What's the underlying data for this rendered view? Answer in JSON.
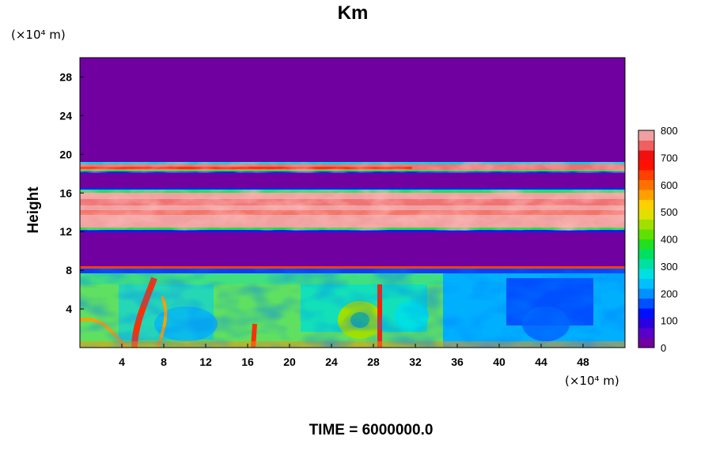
{
  "chart_data": {
    "type": "heatmap",
    "title": "Km",
    "ylabel": "Height",
    "xlabel": "",
    "x_unit": "(×10⁴ m)",
    "y_unit": "(×10⁴ m)",
    "xlim": [
      0,
      52
    ],
    "ylim": [
      0,
      30
    ],
    "x_ticks": [
      "4",
      "8",
      "12",
      "16",
      "20",
      "24",
      "28",
      "32",
      "36",
      "40",
      "44",
      "48"
    ],
    "y_ticks": [
      "4",
      "8",
      "12",
      "16",
      "20",
      "24",
      "28"
    ],
    "colorbar": {
      "range": [
        0,
        800
      ],
      "ticks": [
        "0",
        "100",
        "200",
        "300",
        "400",
        "500",
        "600",
        "700",
        "800"
      ],
      "colors": [
        "#7000a0",
        "#5a00c8",
        "#2a00e0",
        "#0010ff",
        "#0050ff",
        "#0090ff",
        "#00c0ff",
        "#00e0e0",
        "#00e0a0",
        "#00e060",
        "#20e020",
        "#60e000",
        "#a0e000",
        "#e0e000",
        "#ffd000",
        "#ffa000",
        "#ff7000",
        "#ff4000",
        "#ff1000",
        "#f01010",
        "#f06060",
        "#f0a0a0"
      ]
    },
    "field": {
      "background": "#7000a0",
      "upper_band": {
        "y_from": 18,
        "y_to": 19,
        "level": "high"
      },
      "middle_band": {
        "y_from": 12.4,
        "y_to": 16,
        "level": "very high"
      },
      "lower_layer": {
        "y_from": 0,
        "y_to": 7.5,
        "level": "mixed"
      }
    },
    "grid": false,
    "legend": "colorbar-right"
  },
  "footer": {
    "time_label": "TIME = 6000000.0"
  }
}
